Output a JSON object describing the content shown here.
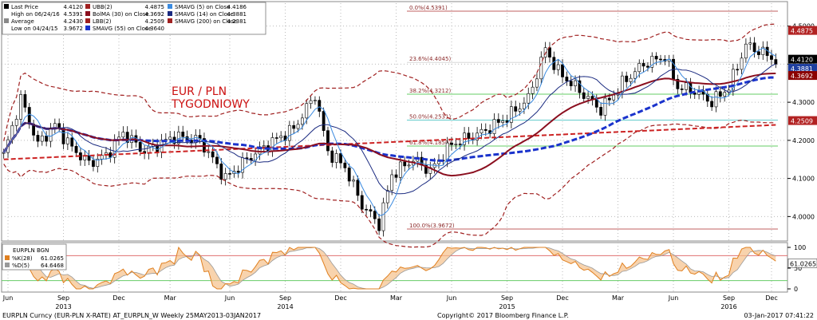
{
  "legend": {
    "rows": [
      {
        "label": "Last Price",
        "value": "4.4120",
        "marker": "black-square"
      },
      {
        "label": "High on 06/24/16",
        "value": "4.5391",
        "marker": "none"
      },
      {
        "label": "Average",
        "value": "4.2430",
        "marker": "dash-gray"
      },
      {
        "label": "Low on 04/24/15",
        "value": "3.9672",
        "marker": "none"
      },
      {
        "label": "UBB(2)",
        "value": "4.4875",
        "marker": "dash-red"
      },
      {
        "label": "BolMA (30) on Close",
        "value": "4.3692",
        "marker": "maroon"
      },
      {
        "label": "LBB(2)",
        "value": "4.2509",
        "marker": "dash-red"
      },
      {
        "label": "SMAVG (55) on Close",
        "value": "4.3640",
        "marker": "dash-blue"
      },
      {
        "label": "SMAVG (5) on Close",
        "value": "4.4186",
        "marker": "blue"
      },
      {
        "label": "SMAVG (14) on Close",
        "value": "4.3881",
        "marker": "navy"
      },
      {
        "label": "SMAVG (200) on Close",
        "value": "4.2381",
        "marker": "dash-red"
      }
    ]
  },
  "annotation": {
    "line1": "EUR / PLN",
    "line2": "TYGODNIOWY"
  },
  "fib_levels": [
    {
      "label": "0.0%(4.5391)",
      "value": 4.5391,
      "color": "#c06060"
    },
    {
      "label": "23.6%(4.4045)",
      "value": 4.4045,
      "color": "#d8d8d8"
    },
    {
      "label": "38.2%(4.3212)",
      "value": 4.3212,
      "color": "#66cc66"
    },
    {
      "label": "50.0%(4.2531)",
      "value": 4.2531,
      "color": "#66cccc"
    },
    {
      "label": "61.8%(4.1850)",
      "value": 4.185,
      "color": "#66cc66"
    },
    {
      "label": "100.0%(3.9672)",
      "value": 3.9672,
      "color": "#c06060"
    }
  ],
  "price_axis": {
    "ticks": [
      "4.5000",
      "4.4000",
      "4.3000",
      "4.2000",
      "4.1000",
      "4.0000"
    ],
    "values": [
      4.5,
      4.4,
      4.3,
      4.2,
      4.1,
      4.0
    ]
  },
  "price_tags": [
    {
      "text": "4.4875",
      "value": 4.4875,
      "bg": "#b22222",
      "fg": "#ffffff"
    },
    {
      "text": "4.4120",
      "value": 4.412,
      "bg": "#000000",
      "fg": "#ffffff"
    },
    {
      "text": "4.3881",
      "value": 4.3881,
      "bg": "#1f3f9f",
      "fg": "#ffffff"
    },
    {
      "text": "4.3692",
      "value": 4.3692,
      "bg": "#8b0000",
      "fg": "#ffffff"
    },
    {
      "text": "4.2509",
      "value": 4.2509,
      "bg": "#b22222",
      "fg": "#ffffff"
    }
  ],
  "osc_legend": {
    "title": "EURPLN BGN",
    "rows": [
      {
        "label": "%K(28)",
        "value": "61.0265",
        "marker": "orange"
      },
      {
        "label": "%D(5)",
        "value": "64.6468",
        "marker": "gray"
      }
    ]
  },
  "osc_axis": {
    "ticks": [
      "100",
      "50",
      "0"
    ],
    "values": [
      100,
      50,
      0
    ]
  },
  "osc_tag": {
    "text": "61.0265",
    "value": 61.0265
  },
  "osc_lines": [
    {
      "value": 80,
      "color": "#e07070"
    },
    {
      "value": 20,
      "color": "#66cc66"
    }
  ],
  "x_labels": {
    "months": [
      "Jun",
      "Sep",
      "Dec",
      "Mar",
      "Jun",
      "Sep",
      "Dec",
      "Mar",
      "Jun",
      "Sep",
      "Dec",
      "Mar",
      "Jun",
      "Sep",
      "Dec"
    ],
    "years": [
      "2013",
      "2014",
      "2015",
      "2016"
    ]
  },
  "footer": {
    "left": "EURPLN Curncy (EUR-PLN X-RATE) AT_EURPLN_W  Weekly 25MAY2013-03JAN2017",
    "center": "Copyright© 2017 Bloomberg Finance L.P.",
    "right": "03-Jan-2017 07:41:22"
  },
  "chart_data": {
    "type": "line",
    "title": "EUR / PLN TYGODNIOWY",
    "period": "Weekly",
    "ylim": [
      3.94,
      4.56
    ],
    "x_range": [
      "2013-05-25",
      "2017-01-03"
    ],
    "series": [
      {
        "name": "Last Price",
        "anchors": [
          [
            0,
            4.16
          ],
          [
            4,
            4.31
          ],
          [
            8,
            4.19
          ],
          [
            12,
            4.24
          ],
          [
            16,
            4.18
          ],
          [
            20,
            4.14
          ],
          [
            24,
            4.16
          ],
          [
            28,
            4.22
          ],
          [
            33,
            4.17
          ],
          [
            40,
            4.21
          ],
          [
            46,
            4.2
          ],
          [
            52,
            4.1
          ],
          [
            57,
            4.15
          ],
          [
            62,
            4.19
          ],
          [
            68,
            4.23
          ],
          [
            73,
            4.32
          ],
          [
            76,
            4.17
          ],
          [
            80,
            4.13
          ],
          [
            84,
            4.03
          ],
          [
            88,
            3.98
          ],
          [
            91,
            4.11
          ],
          [
            96,
            4.15
          ],
          [
            100,
            4.12
          ],
          [
            105,
            4.19
          ],
          [
            112,
            4.22
          ],
          [
            118,
            4.26
          ],
          [
            123,
            4.31
          ],
          [
            127,
            4.44
          ],
          [
            130,
            4.38
          ],
          [
            135,
            4.33
          ],
          [
            140,
            4.28
          ],
          [
            145,
            4.35
          ],
          [
            150,
            4.4
          ],
          [
            155,
            4.42
          ],
          [
            158,
            4.34
          ],
          [
            162,
            4.33
          ],
          [
            166,
            4.3
          ],
          [
            170,
            4.34
          ],
          [
            174,
            4.45
          ],
          [
            178,
            4.43
          ],
          [
            181,
            4.41
          ]
        ]
      },
      {
        "name": "SMAVG (5) on Close",
        "last": 4.4186
      },
      {
        "name": "SMAVG (14) on Close",
        "last": 4.3881
      },
      {
        "name": "BolMA (30) on Close",
        "last": 4.3692
      },
      {
        "name": "UBB(2)",
        "last": 4.4875
      },
      {
        "name": "LBB(2)",
        "last": 4.2509
      },
      {
        "name": "SMAVG (55) on Close",
        "last": 4.364
      },
      {
        "name": "SMAVG (200) on Close",
        "last": 4.2381
      },
      {
        "name": "%K(28)",
        "last": 61.0265
      },
      {
        "name": "%D(5)",
        "last": 64.6468
      }
    ],
    "summary": {
      "last": 4.412,
      "high": 4.5391,
      "high_date": "06/24/16",
      "average": 4.243,
      "low": 3.9672,
      "low_date": "04/24/15"
    }
  }
}
